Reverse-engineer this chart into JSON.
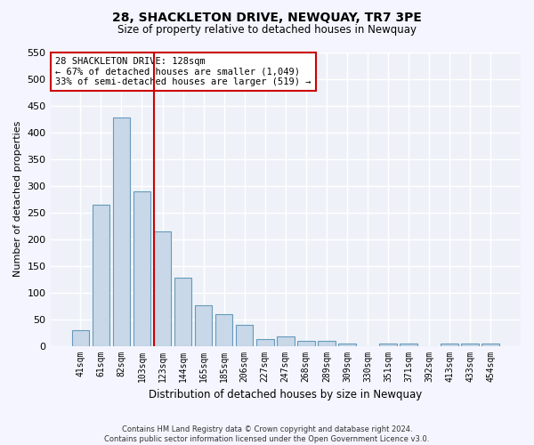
{
  "title": "28, SHACKLETON DRIVE, NEWQUAY, TR7 3PE",
  "subtitle": "Size of property relative to detached houses in Newquay",
  "xlabel": "Distribution of detached houses by size in Newquay",
  "ylabel": "Number of detached properties",
  "bar_color": "#c8d8e8",
  "bar_edge_color": "#6699bb",
  "background_color": "#eef2f8",
  "grid_color": "#ffffff",
  "annotation_line_color": "#cc0000",
  "annotation_box_color": "#cc0000",
  "categories": [
    "41sqm",
    "61sqm",
    "82sqm",
    "103sqm",
    "123sqm",
    "144sqm",
    "165sqm",
    "185sqm",
    "206sqm",
    "227sqm",
    "247sqm",
    "268sqm",
    "289sqm",
    "309sqm",
    "330sqm",
    "351sqm",
    "371sqm",
    "392sqm",
    "413sqm",
    "433sqm",
    "454sqm"
  ],
  "values": [
    30,
    265,
    428,
    290,
    215,
    128,
    76,
    60,
    40,
    13,
    17,
    9,
    10,
    4,
    0,
    5,
    4,
    0,
    5,
    5,
    5
  ],
  "annotation_text_line1": "28 SHACKLETON DRIVE: 128sqm",
  "annotation_text_line2": "← 67% of detached houses are smaller (1,049)",
  "annotation_text_line3": "33% of semi-detached houses are larger (519) →",
  "ylim": [
    0,
    550
  ],
  "yticks": [
    0,
    50,
    100,
    150,
    200,
    250,
    300,
    350,
    400,
    450,
    500,
    550
  ],
  "footer_line1": "Contains HM Land Registry data © Crown copyright and database right 2024.",
  "footer_line2": "Contains public sector information licensed under the Open Government Licence v3.0."
}
